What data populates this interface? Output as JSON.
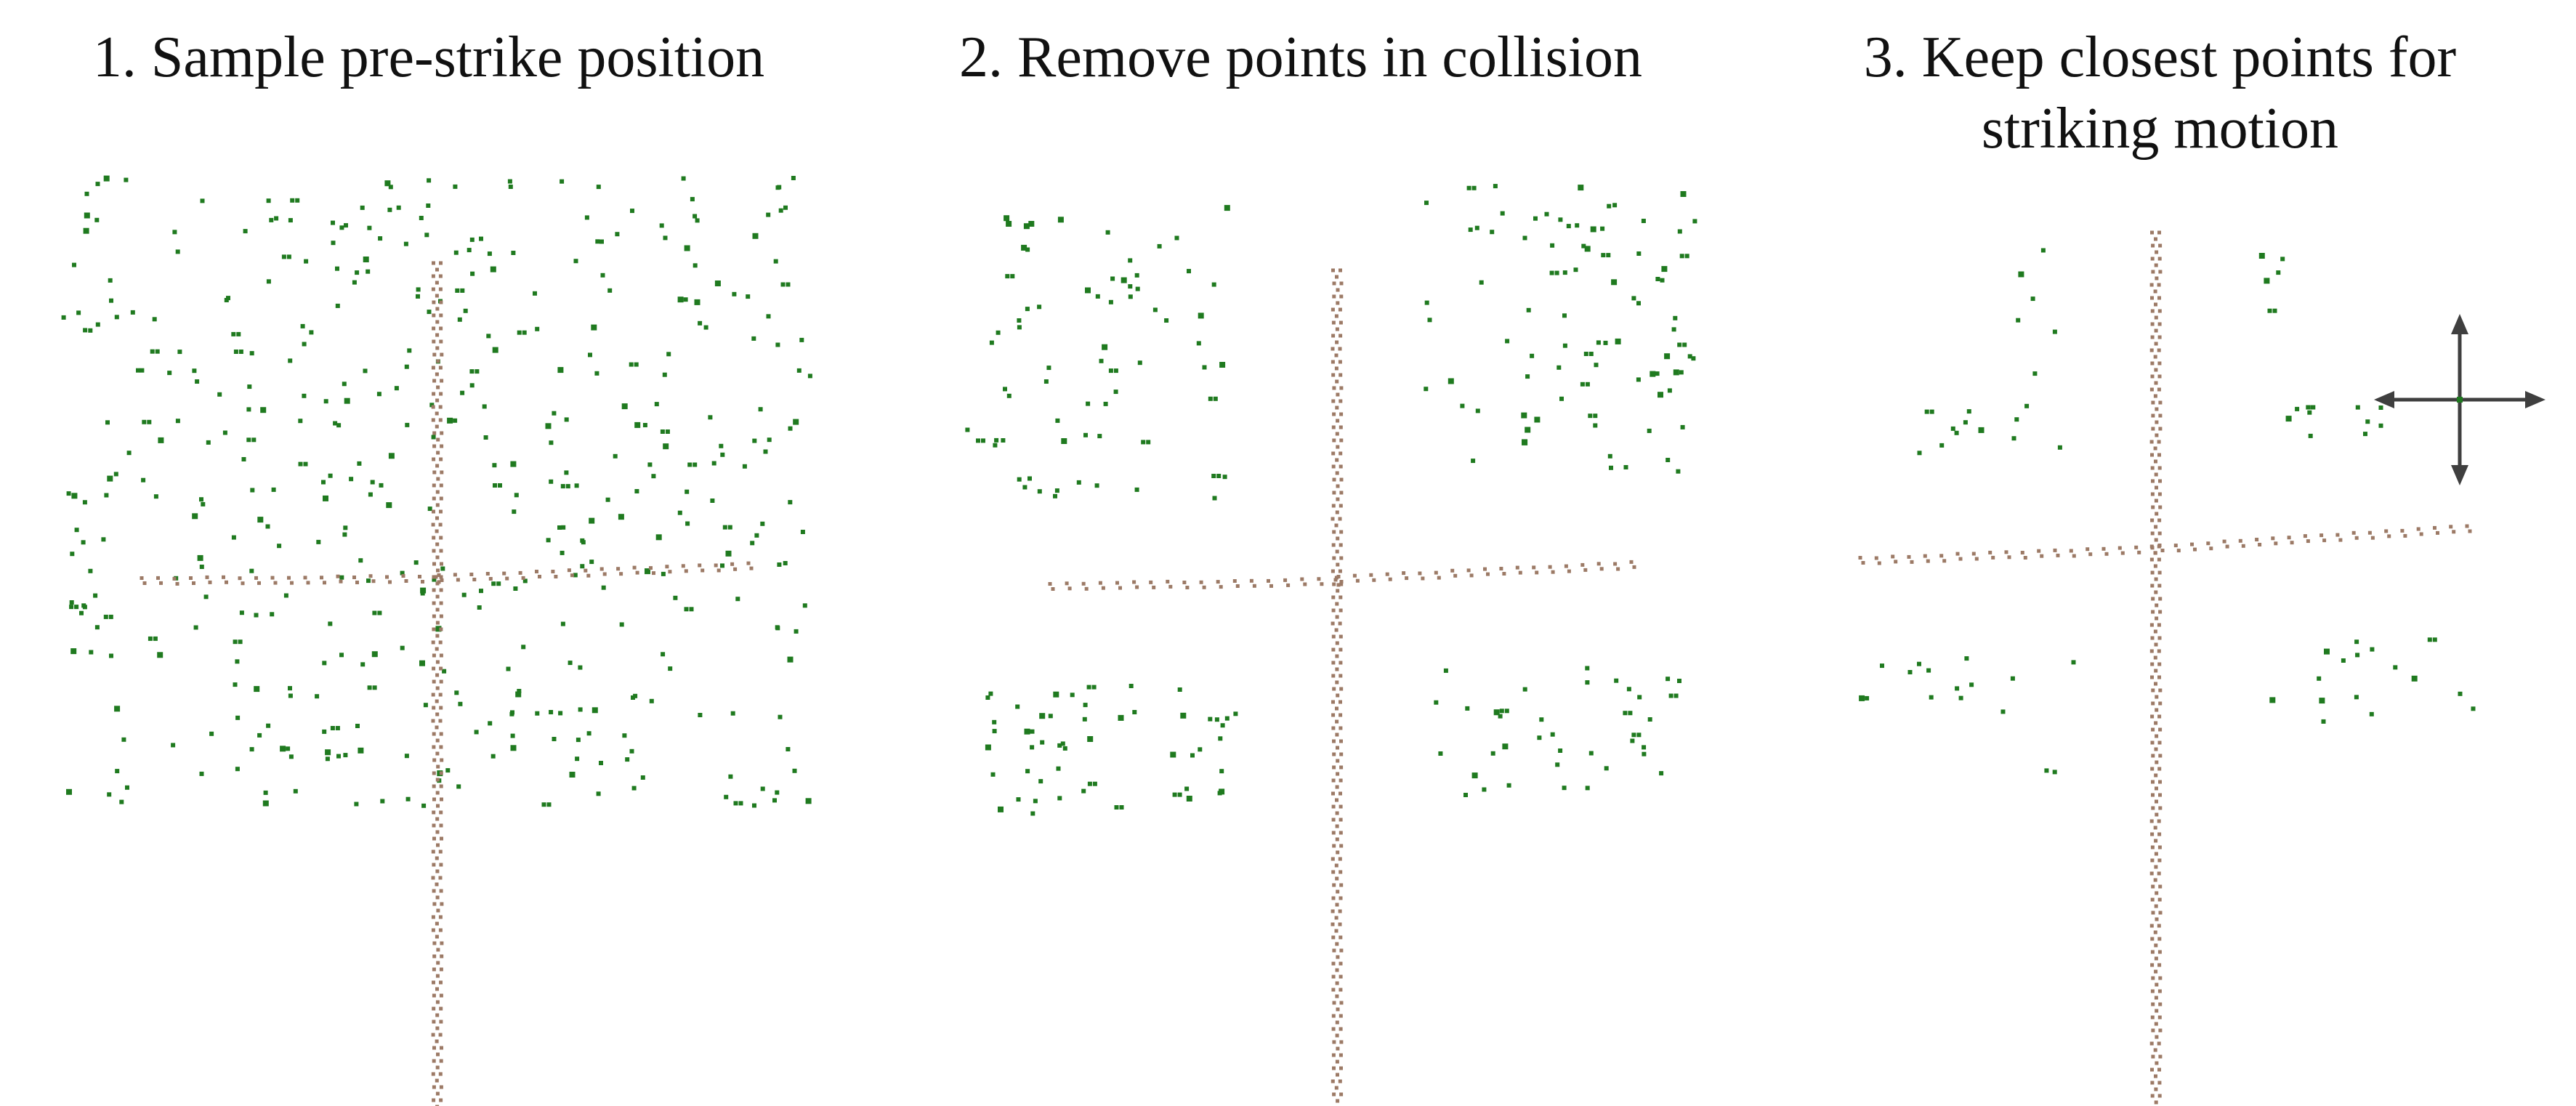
{
  "panels": [
    {
      "id": "sample",
      "title": "1. Sample pre-strike position"
    },
    {
      "id": "remove",
      "title": "2. Remove points in collision"
    },
    {
      "id": "keep",
      "title_line1": "3. Keep closest points for",
      "title_line2": "striking motion"
    }
  ],
  "colors": {
    "background": "#ffffff",
    "sample_point": "#1f7a1f",
    "branch_point": "#9c7a66",
    "arrow": "#3f3f3f"
  },
  "icons": [
    "move-arrows-icon"
  ]
}
